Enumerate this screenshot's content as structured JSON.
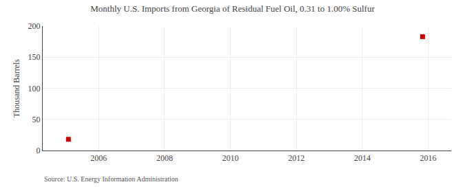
{
  "chart_data": {
    "type": "scatter",
    "title": "Monthly U.S. Imports from Georgia of Residual Fuel Oil, 0.31 to 1.00% Sulfur",
    "y_label": "Thousand Barrels",
    "annotations": [
      "Source: U.S. Energy Information Administration"
    ],
    "x": [
      2005.08,
      2015.83
    ],
    "values": [
      18,
      183
    ],
    "color": "#CC0000",
    "marker": "square",
    "xlim": [
      2004.3,
      2016.7
    ],
    "xticks": [
      2006,
      2008,
      2010,
      2012,
      2014,
      2016
    ],
    "ylim": [
      0,
      200
    ],
    "yticks": [
      0,
      50,
      100,
      150,
      200
    ],
    "grid": true
  }
}
